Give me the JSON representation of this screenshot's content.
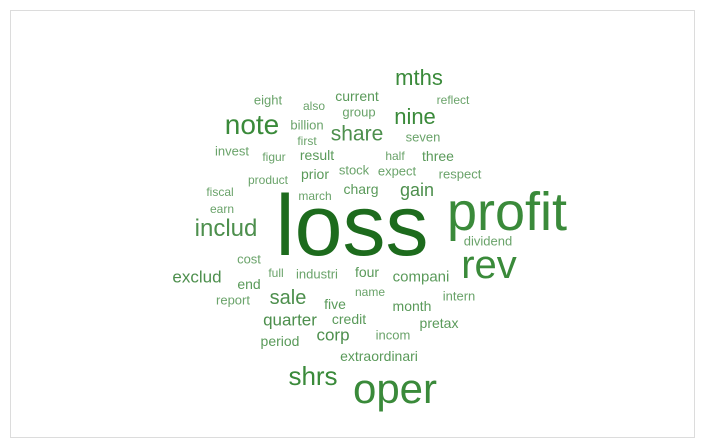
{
  "cloud": {
    "words": [
      {
        "text": "loss",
        "weight": 100,
        "color": "#1d6b1d"
      },
      {
        "text": "profit",
        "weight": 55,
        "color": "#3a8a3a"
      },
      {
        "text": "oper",
        "weight": 45,
        "color": "#3a8a3a"
      },
      {
        "text": "rev",
        "weight": 40,
        "color": "#3a8a3a"
      },
      {
        "text": "note",
        "weight": 29,
        "color": "#3a8a3a"
      },
      {
        "text": "shrs",
        "weight": 27,
        "color": "#3a8a3a"
      },
      {
        "text": "includ",
        "weight": 25,
        "color": "#4d8f4d"
      },
      {
        "text": "mths",
        "weight": 23,
        "color": "#3a8a3a"
      },
      {
        "text": "nine",
        "weight": 23,
        "color": "#3a8a3a"
      },
      {
        "text": "share",
        "weight": 21,
        "color": "#4d8f4d"
      },
      {
        "text": "sale",
        "weight": 21,
        "color": "#4d8f4d"
      },
      {
        "text": "gain",
        "weight": 19,
        "color": "#4d8f4d"
      },
      {
        "text": "exclud",
        "weight": 18,
        "color": "#4d8f4d"
      },
      {
        "text": "quarter",
        "weight": 18,
        "color": "#4d8f4d"
      },
      {
        "text": "corp",
        "weight": 17,
        "color": "#4d8f4d"
      },
      {
        "text": "compani",
        "weight": 15,
        "color": "#5a9a5a"
      },
      {
        "text": "current",
        "weight": 14,
        "color": "#5a9a5a"
      },
      {
        "text": "result",
        "weight": 14,
        "color": "#5a9a5a"
      },
      {
        "text": "three",
        "weight": 14,
        "color": "#5a9a5a"
      },
      {
        "text": "month",
        "weight": 14,
        "color": "#5a9a5a"
      },
      {
        "text": "credit",
        "weight": 14,
        "color": "#5a9a5a"
      },
      {
        "text": "extraordinari",
        "weight": 14,
        "color": "#5a9a5a"
      },
      {
        "text": "prior",
        "weight": 13,
        "color": "#5a9a5a"
      },
      {
        "text": "charg",
        "weight": 13,
        "color": "#5a9a5a"
      },
      {
        "text": "four",
        "weight": 13,
        "color": "#5a9a5a"
      },
      {
        "text": "end",
        "weight": 13,
        "color": "#5a9a5a"
      },
      {
        "text": "five",
        "weight": 13,
        "color": "#5a9a5a"
      },
      {
        "text": "period",
        "weight": 13,
        "color": "#5a9a5a"
      },
      {
        "text": "pretax",
        "weight": 13,
        "color": "#5a9a5a"
      },
      {
        "text": "billion",
        "weight": 12,
        "color": "#6aa36a"
      },
      {
        "text": "group",
        "weight": 12,
        "color": "#6aa36a"
      },
      {
        "text": "eight",
        "weight": 12,
        "color": "#6aa36a"
      },
      {
        "text": "seven",
        "weight": 12,
        "color": "#6aa36a"
      },
      {
        "text": "invest",
        "weight": 12,
        "color": "#6aa36a"
      },
      {
        "text": "respect",
        "weight": 12,
        "color": "#6aa36a"
      },
      {
        "text": "stock",
        "weight": 12,
        "color": "#6aa36a"
      },
      {
        "text": "expect",
        "weight": 12,
        "color": "#6aa36a"
      },
      {
        "text": "dividend",
        "weight": 12,
        "color": "#6aa36a"
      },
      {
        "text": "industri",
        "weight": 12,
        "color": "#6aa36a"
      },
      {
        "text": "intern",
        "weight": 12,
        "color": "#6aa36a"
      },
      {
        "text": "cost",
        "weight": 12,
        "color": "#6aa36a"
      },
      {
        "text": "report",
        "weight": 12,
        "color": "#6aa36a"
      },
      {
        "text": "incom",
        "weight": 12,
        "color": "#6aa36a"
      },
      {
        "text": "also",
        "weight": 11,
        "color": "#6aa36a"
      },
      {
        "text": "reflect",
        "weight": 11,
        "color": "#6aa36a"
      },
      {
        "text": "first",
        "weight": 11,
        "color": "#6aa36a"
      },
      {
        "text": "figur",
        "weight": 11,
        "color": "#6aa36a"
      },
      {
        "text": "half",
        "weight": 11,
        "color": "#6aa36a"
      },
      {
        "text": "product",
        "weight": 11,
        "color": "#6aa36a"
      },
      {
        "text": "fiscal",
        "weight": 11,
        "color": "#6aa36a"
      },
      {
        "text": "earn",
        "weight": 11,
        "color": "#6aa36a"
      },
      {
        "text": "march",
        "weight": 11,
        "color": "#6aa36a"
      },
      {
        "text": "full",
        "weight": 11,
        "color": "#6aa36a"
      },
      {
        "text": "name",
        "weight": 11,
        "color": "#6aa36a"
      }
    ]
  }
}
